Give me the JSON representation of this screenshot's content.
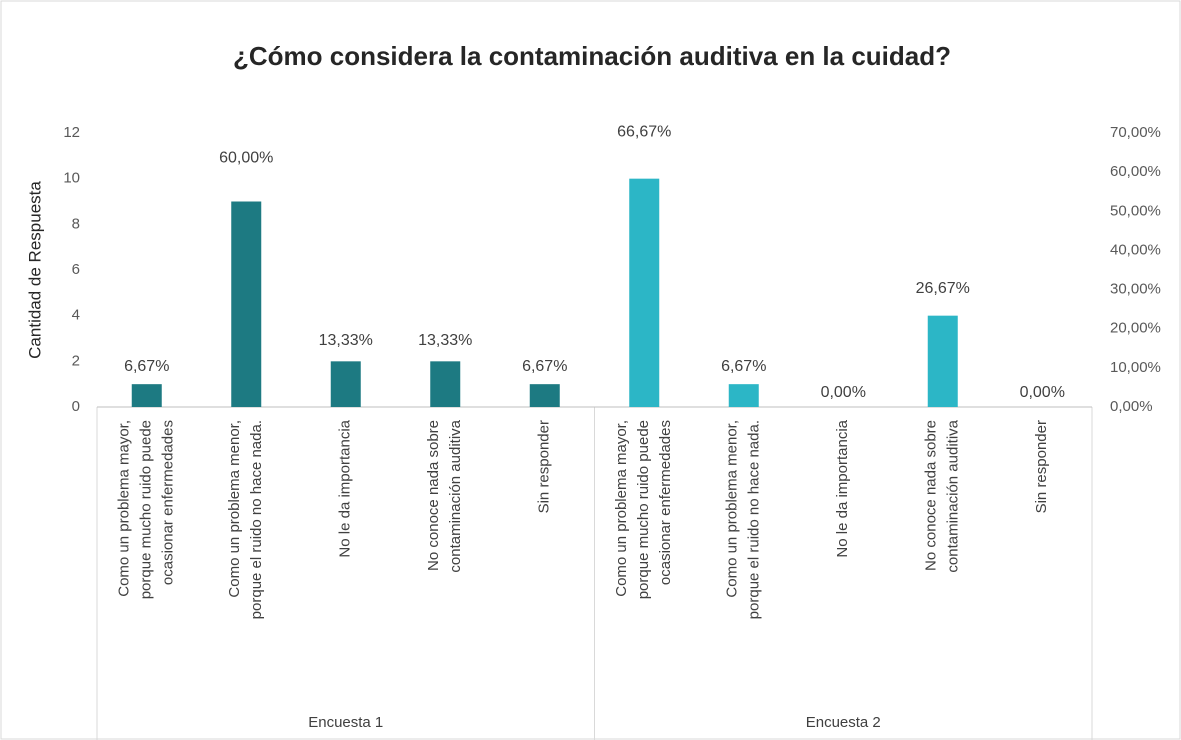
{
  "chart_data": {
    "type": "bar",
    "title": "¿Cómo considera la contaminación auditiva en la cuidad?",
    "ylabel": "Cantidad de Respuesta",
    "categories": [
      [
        "Como un problema mayor,",
        "porque mucho ruido puede",
        "ocasionar enfermedades"
      ],
      [
        "Como un problema menor,",
        "porque el ruido no hace nada."
      ],
      [
        "No le da importancia"
      ],
      [
        "No conoce nada sobre",
        "contaminación auditiva"
      ],
      [
        "Sin responder"
      ]
    ],
    "series": [
      {
        "name": "Encuesta 1",
        "color": "#1d7a82",
        "values": [
          1,
          9,
          2,
          2,
          1
        ],
        "percents": [
          6.67,
          60,
          13.33,
          13.33,
          6.67
        ],
        "value_labels": [
          "6,67%",
          "60,00%",
          "13,33%",
          "13,33%",
          "6,67%"
        ]
      },
      {
        "name": "Encuesta 2",
        "color": "#2cb6c6",
        "values": [
          10,
          1,
          0,
          4,
          0
        ],
        "percents": [
          66.67,
          6.67,
          0,
          26.67,
          0
        ],
        "value_labels": [
          "66,67%",
          "6,67%",
          "0,00%",
          "26,67%",
          "0,00%"
        ]
      }
    ],
    "ylim": [
      0,
      12
    ],
    "yticks": [
      0,
      2,
      4,
      6,
      8,
      10,
      12
    ],
    "y2lim": [
      0,
      70
    ],
    "y2ticks": [
      {
        "value": 0,
        "label": "0,00%"
      },
      {
        "value": 10,
        "label": "10,00%"
      },
      {
        "value": 20,
        "label": "20,00%"
      },
      {
        "value": 30,
        "label": "30,00%"
      },
      {
        "value": 40,
        "label": "40,00%"
      },
      {
        "value": 50,
        "label": "50,00%"
      },
      {
        "value": 60,
        "label": "60,00%"
      },
      {
        "value": 70,
        "label": "70,00%"
      }
    ],
    "grid": false
  }
}
